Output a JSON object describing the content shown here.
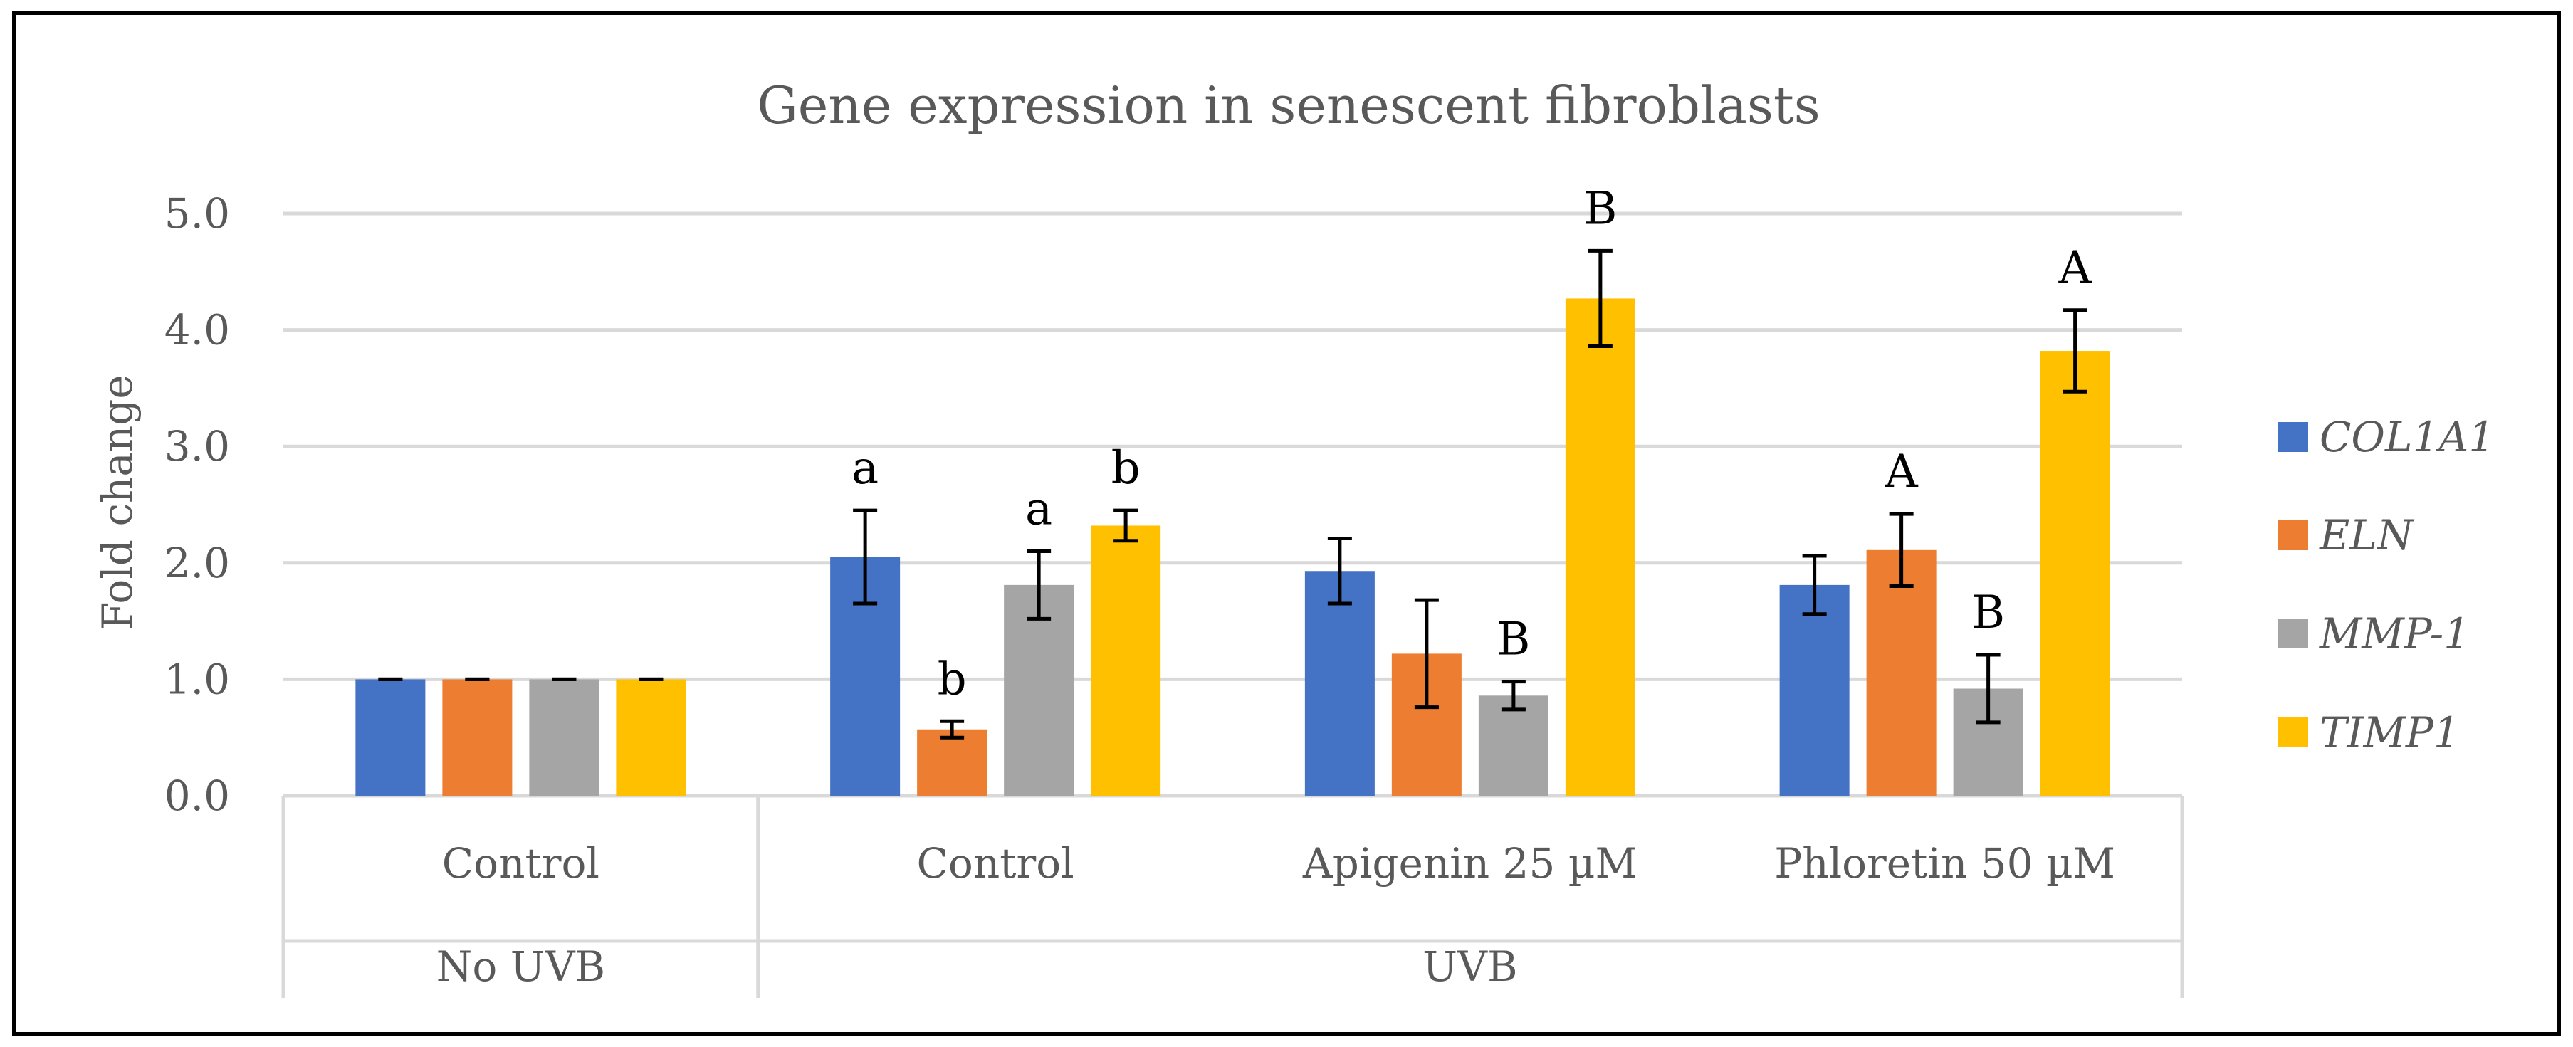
{
  "chart_data": {
    "type": "bar",
    "title": "Gene expression in senescent fibroblasts",
    "ylabel": "Fold change",
    "xlabel": "",
    "ylim": [
      0,
      5
    ],
    "yticks": [
      "0.0",
      "1.0",
      "2.0",
      "3.0",
      "4.0",
      "5.0"
    ],
    "grid": true,
    "legend_position": "right",
    "categories": [
      "Control",
      "Control",
      "Apigenin 25 µM",
      "Phloretin 50 µM"
    ],
    "groups": [
      {
        "label": "No UVB",
        "categories": [
          0
        ]
      },
      {
        "label": "UVB",
        "categories": [
          1,
          2,
          3
        ]
      }
    ],
    "series": [
      {
        "name": "COL1A1",
        "color": "#4472C4",
        "values": [
          1.0,
          2.05,
          1.93,
          1.81
        ],
        "errors": [
          0.0,
          0.4,
          0.28,
          0.25
        ],
        "labels": [
          "",
          "a",
          "",
          ""
        ]
      },
      {
        "name": "ELN",
        "color": "#ED7D31",
        "values": [
          1.0,
          0.57,
          1.22,
          2.11
        ],
        "errors": [
          0.0,
          0.07,
          0.46,
          0.31
        ],
        "labels": [
          "",
          "b",
          "",
          "A"
        ]
      },
      {
        "name": "MMP-1",
        "color": "#A5A5A5",
        "values": [
          1.0,
          1.81,
          0.86,
          0.92
        ],
        "errors": [
          0.0,
          0.29,
          0.12,
          0.29
        ],
        "labels": [
          "",
          "a",
          "B",
          "B"
        ]
      },
      {
        "name": "TIMP1",
        "color": "#FFC000",
        "values": [
          1.0,
          2.32,
          4.27,
          3.82
        ],
        "errors": [
          0.0,
          0.13,
          0.41,
          0.35
        ],
        "labels": [
          "",
          "b",
          "B",
          "A"
        ]
      }
    ]
  }
}
